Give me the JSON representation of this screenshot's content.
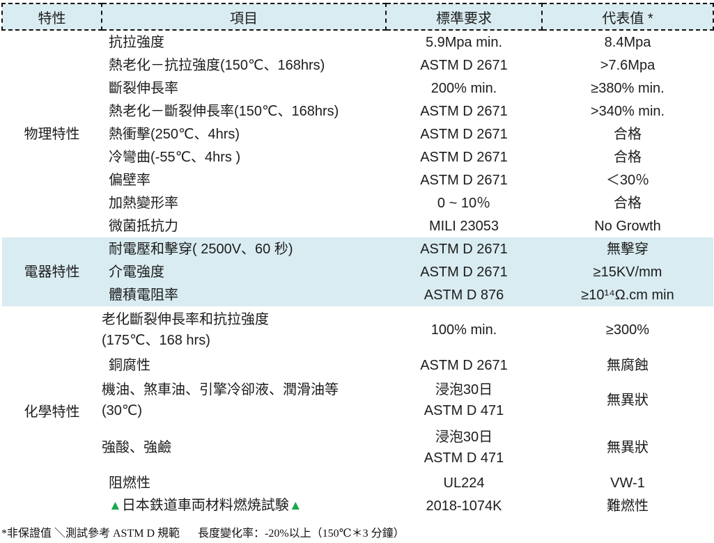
{
  "table": {
    "headers": [
      "特性",
      "項目",
      "標準要求",
      "代表值 *"
    ],
    "groups": [
      {
        "label": "物理特性"
      },
      {
        "label": "電器特性"
      },
      {
        "label": "化學特性"
      }
    ],
    "rows": [
      {
        "item": "抗拉強度",
        "std": "5.9Mpa min.",
        "rep": "8.4Mpa"
      },
      {
        "item": "熱老化－抗拉強度(150℃、168hrs)",
        "std": "ASTM D 2671",
        "rep": ">7.6Mpa"
      },
      {
        "item": "斷裂伸長率",
        "std": "200% min.",
        "rep": "≥380% min."
      },
      {
        "item": "熱老化－斷裂伸長率(150℃、168hrs)",
        "std": "ASTM D 2671",
        "rep": ">340% min."
      },
      {
        "item": "熱衝擊(250℃、4hrs)",
        "std": "ASTM D 2671",
        "rep": "合格"
      },
      {
        "item": "冷彎曲(-55℃、4hrs )",
        "std": "ASTM D 2671",
        "rep": "合格"
      },
      {
        "item": "偏壁率",
        "std": "ASTM D 2671",
        "rep": "＜30％"
      },
      {
        "item": "加熱變形率",
        "std": "0 ~ 10％",
        "rep": "合格"
      },
      {
        "item": "微菌抵抗力",
        "std": "MILI 23053",
        "rep": "No Growth"
      },
      {
        "item": "耐電壓和擊穿( 2500V、60 秒)",
        "std": "ASTM D 2671",
        "rep": "無擊穿"
      },
      {
        "item": "介電強度",
        "std": "ASTM D 2671",
        "rep": "≥15KV/mm"
      },
      {
        "item": "體積電阻率",
        "std": "ASTM D 876",
        "rep": "≥10¹⁴Ω.cm min"
      },
      {
        "item": "老化斷裂伸長率和抗拉強度",
        "item2": "(175℃、168 hrs)",
        "std": "100% min.",
        "rep": "≥300%"
      },
      {
        "item": "銅腐性",
        "std": "ASTM D 2671",
        "rep": "無腐蝕"
      },
      {
        "item": "機油、煞車油、引擎冷卻液、潤滑油等",
        "item2": "(30℃)",
        "std": "浸泡30日",
        "std2": "ASTM D 471",
        "rep": "無異狀"
      },
      {
        "item": "強酸、強鹼",
        "std": "浸泡30日",
        "std2": "ASTM D 471",
        "rep": "無異狀"
      },
      {
        "item": "阻燃性",
        "std": "UL224",
        "rep": "VW-1"
      },
      {
        "item": "日本鉄道車両材料燃焼試験",
        "tri": "▲",
        "std": "2018-1074K",
        "rep": "難燃性"
      }
    ]
  },
  "footnote": {
    "left": "*非保證值 ＼測試參考 ASTM D 規範",
    "right": "長度變化率：-20%以上（150℃＊3 分鐘）"
  },
  "colors": {
    "header_band_blue": "#d9ecf2",
    "triangle_green": "#19a850",
    "border_black": "#111111"
  }
}
